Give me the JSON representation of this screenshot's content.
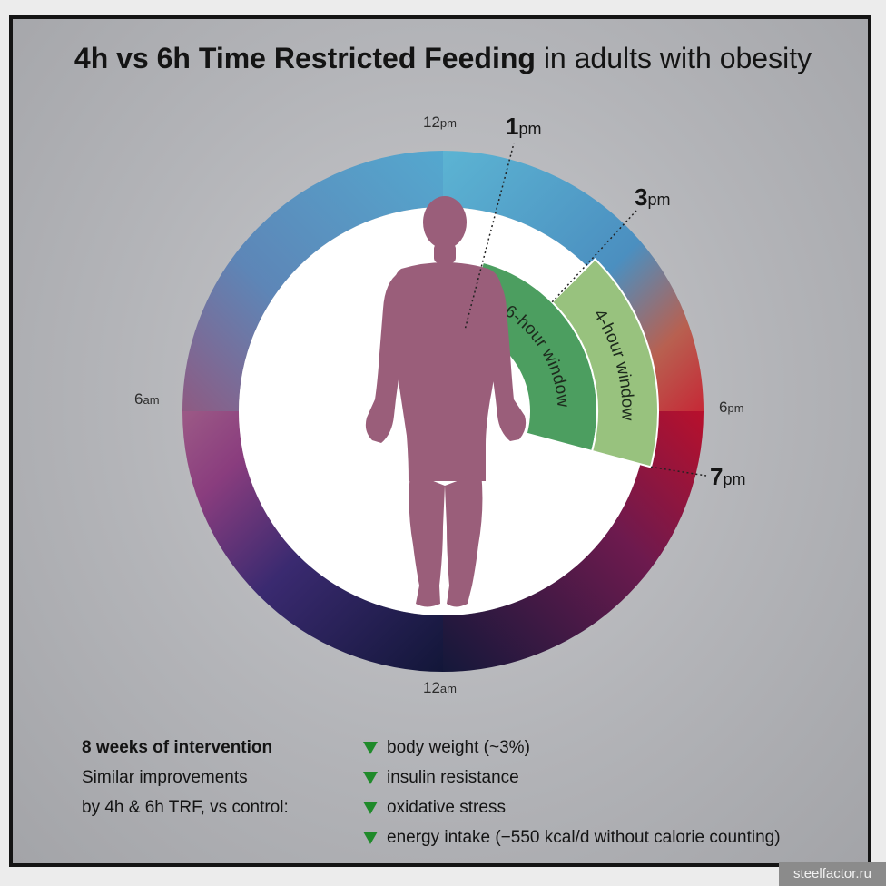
{
  "title": {
    "bold": "4h vs 6h Time Restricted Feeding",
    "rest": "in adults with obesity"
  },
  "clock_labels": {
    "noon": {
      "num": "12",
      "suf": "pm"
    },
    "six_am": {
      "num": "6",
      "suf": "am"
    },
    "six_pm": {
      "num": "6",
      "suf": "pm"
    },
    "midnight": {
      "num": "12",
      "suf": "am"
    }
  },
  "window_times": {
    "start_6h": {
      "num": "1",
      "suf": "pm"
    },
    "start_4h": {
      "num": "3",
      "suf": "pm"
    },
    "end": {
      "num": "7",
      "suf": "pm"
    }
  },
  "windows": {
    "six_hour": "6-hour window",
    "four_hour": "4-hour window"
  },
  "colors": {
    "six_hour_window": "#4c9e60",
    "four_hour_window": "#98c27e",
    "down_arrow": "#1f8a2a",
    "body_silhouette": "#9a5e7a"
  },
  "summary": {
    "heading": "8 weeks of intervention",
    "line1": "Similar improvements",
    "line2": "by 4h & 6h TRF, vs control:"
  },
  "effects": [
    {
      "icon": "down-arrow-icon",
      "text": "body weight (~3%)"
    },
    {
      "icon": "down-arrow-icon",
      "text": "insulin resistance"
    },
    {
      "icon": "down-arrow-icon",
      "text": "oxidative stress"
    },
    {
      "icon": "down-arrow-icon",
      "text": "energy intake (−550 kcal/d without calorie counting)"
    }
  ],
  "watermark": "steelfactor.ru"
}
